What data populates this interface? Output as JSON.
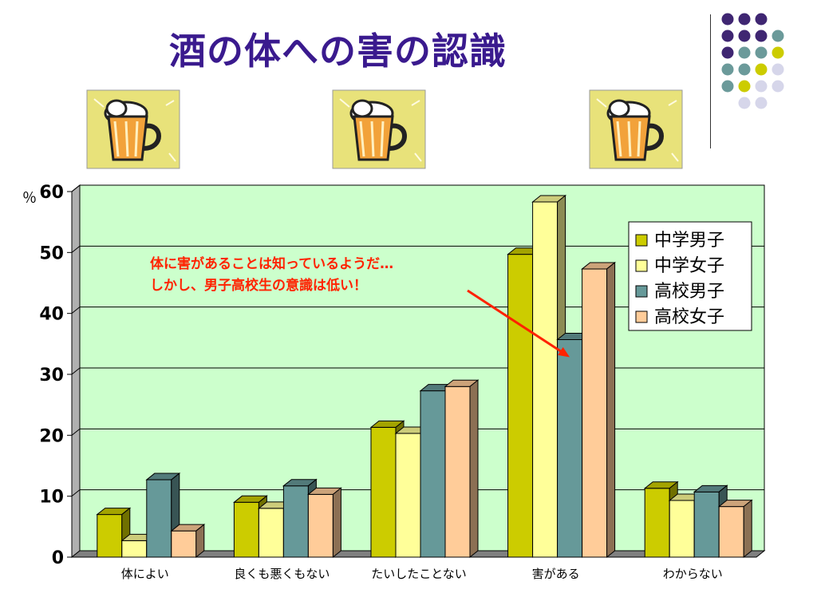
{
  "slide": {
    "title": "酒の体への害の認識",
    "decoration_colors": [
      "#3f2672",
      "#6b9a9a",
      "#cccc00",
      "#d6d6ea"
    ],
    "icons": [
      "beer-mug-icon",
      "beer-mug-icon",
      "beer-mug-icon"
    ]
  },
  "chart_data": {
    "type": "bar",
    "style": "3d-clustered",
    "title": "",
    "xlabel": "",
    "ylabel": "％",
    "ylim": [
      0,
      60
    ],
    "yticks": [
      0,
      10,
      20,
      30,
      40,
      50,
      60
    ],
    "grid": true,
    "legend_position": "top-right",
    "categories": [
      "体によい",
      "良くも悪くもない",
      "たいしたことない",
      "害がある",
      "わからない"
    ],
    "series": [
      {
        "name": "中学男子",
        "color": "#cccc00",
        "values": [
          7,
          9,
          21.3,
          49.7,
          11.3
        ]
      },
      {
        "name": "中学女子",
        "color": "#ffff99",
        "values": [
          2.7,
          8,
          20.3,
          58.3,
          9.3
        ]
      },
      {
        "name": "高校男子",
        "color": "#669999",
        "values": [
          12.7,
          11.7,
          27.3,
          35.7,
          10.7
        ]
      },
      {
        "name": "高校女子",
        "color": "#ffcc99",
        "values": [
          4.3,
          10.3,
          28,
          47.3,
          8.3
        ]
      }
    ],
    "annotation": {
      "lines": [
        "体に害があることは知っているようだ…",
        "しかし、男子高校生の意識は低い！"
      ],
      "color": "#ff2200",
      "points_to": {
        "series": "高校男子",
        "category": "害がある"
      }
    }
  }
}
